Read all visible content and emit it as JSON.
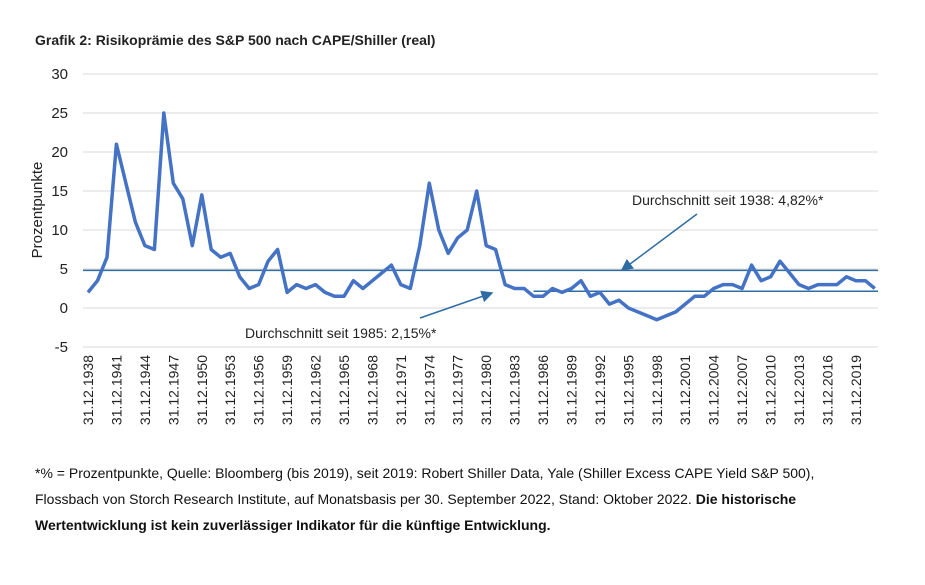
{
  "chart_data": {
    "type": "line",
    "title": "Grafik 2: Risikoprämie des S&P 500 nach CAPE/Shiller (real)",
    "y_label": "Prozentpunkte",
    "x": [
      "31.12.1938",
      "31.12.1939",
      "31.12.1940",
      "31.12.1941",
      "31.12.1942",
      "31.12.1943",
      "31.12.1944",
      "31.12.1945",
      "31.12.1946",
      "31.12.1947",
      "31.12.1948",
      "31.12.1949",
      "31.12.1950",
      "31.12.1951",
      "31.12.1952",
      "31.12.1953",
      "31.12.1954",
      "31.12.1955",
      "31.12.1956",
      "31.12.1957",
      "31.12.1958",
      "31.12.1959",
      "31.12.1960",
      "31.12.1961",
      "31.12.1962",
      "31.12.1963",
      "31.12.1964",
      "31.12.1965",
      "31.12.1966",
      "31.12.1967",
      "31.12.1968",
      "31.12.1969",
      "31.12.1970",
      "31.12.1971",
      "31.12.1972",
      "31.12.1973",
      "31.12.1974",
      "31.12.1975",
      "31.12.1976",
      "31.12.1977",
      "31.12.1978",
      "31.12.1979",
      "31.12.1980",
      "31.12.1981",
      "31.12.1982",
      "31.12.1983",
      "31.12.1984",
      "31.12.1985",
      "31.12.1986",
      "31.12.1987",
      "31.12.1988",
      "31.12.1989",
      "31.12.1990",
      "31.12.1991",
      "31.12.1992",
      "31.12.1993",
      "31.12.1994",
      "31.12.1995",
      "31.12.1996",
      "31.12.1997",
      "31.12.1998",
      "31.12.1999",
      "31.12.2000",
      "31.12.2001",
      "31.12.2002",
      "31.12.2003",
      "31.12.2004",
      "31.12.2005",
      "31.12.2006",
      "31.12.2007",
      "31.12.2008",
      "31.12.2009",
      "31.12.2010",
      "31.12.2011",
      "31.12.2012",
      "31.12.2013",
      "31.12.2014",
      "31.12.2015",
      "31.12.2016",
      "31.12.2017",
      "31.12.2018",
      "31.12.2019",
      "31.12.2020",
      "31.12.2021"
    ],
    "series": [
      {
        "color": "#4472c4",
        "values": [
          2,
          3.5,
          6.5,
          21,
          16,
          11,
          8,
          7.5,
          25,
          16,
          14,
          8,
          14.5,
          7.5,
          6.5,
          7,
          4,
          2.5,
          3,
          6,
          7.5,
          2,
          3,
          2.5,
          3,
          2,
          1.5,
          1.5,
          3.5,
          2.5,
          3.5,
          4.5,
          5.5,
          3,
          2.5,
          8,
          16,
          10,
          7,
          9,
          10,
          15,
          8,
          7.5,
          3,
          2.5,
          2.5,
          1.5,
          1.5,
          2.5,
          2,
          2.5,
          3.5,
          1.5,
          2,
          0.5,
          1,
          0,
          -0.5,
          -1,
          -1.5,
          -1,
          -0.5,
          0.5,
          1.5,
          1.5,
          2.5,
          3,
          3,
          2.5,
          5.5,
          3.5,
          4,
          6,
          4.5,
          3,
          2.5,
          3,
          3,
          3,
          4,
          3.5,
          3.5,
          2.5
        ]
      }
    ],
    "averages": [
      {
        "label": "Durchschnitt seit 1938: 4,82%*",
        "value": 4.82,
        "from": "31.12.1938",
        "color": "#2e6da4"
      },
      {
        "label": "Durchschnitt seit 1985: 2,15%*",
        "value": 2.15,
        "from": "31.12.1985",
        "color": "#2e6da4"
      }
    ],
    "xticks": [
      "31.12.1938",
      "31.12.1941",
      "31.12.1944",
      "31.12.1947",
      "31.12.1950",
      "31.12.1953",
      "31.12.1956",
      "31.12.1959",
      "31.12.1962",
      "31.12.1965",
      "31.12.1968",
      "31.12.1971",
      "31.12.1974",
      "31.12.1977",
      "31.12.1980",
      "31.12.1983",
      "31.12.1986",
      "31.12.1989",
      "31.12.1992",
      "31.12.1995",
      "31.12.1998",
      "31.12.2001",
      "31.12.2004",
      "31.12.2007",
      "31.12.2010",
      "31.12.2013",
      "31.12.2016",
      "31.12.2019"
    ],
    "ylim": [
      -5,
      30
    ],
    "yticks": [
      -5,
      0,
      5,
      10,
      15,
      20,
      25,
      30
    ],
    "grid": true,
    "footnote": "*% = Prozentpunkte, Quelle: Bloomberg (bis 2019), seit 2019: Robert Shiller Data, Yale (Shiller Excess CAPE Yield S&P 500), Flossbach von Storch Research Institute, auf Monatsbasis per 30. September 2022, Stand: Oktober 2022.",
    "footnote_bold": "Die historische Wertentwicklung ist kein zuverlässiger Indikator für die künftige Entwicklung."
  }
}
